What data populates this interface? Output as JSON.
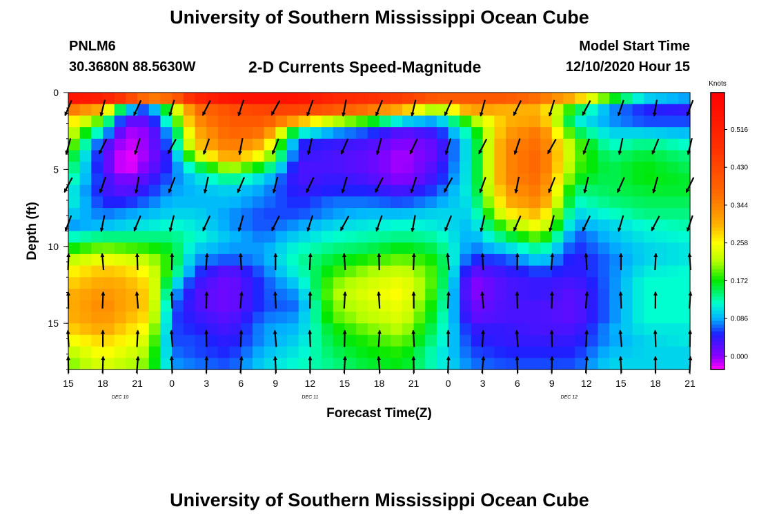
{
  "header": {
    "title": "University of Southern Mississippi Ocean Cube",
    "station": "PNLM6",
    "coords": "30.3680N 88.5630W",
    "subtitle": "2-D Currents Speed-Magnitude",
    "model_start_label": "Model Start Time",
    "model_start_value": "12/10/2020 Hour 15"
  },
  "footer": {
    "title": "University of Southern Mississippi Ocean Cube"
  },
  "chart_data": {
    "type": "heatmap",
    "title": "2-D Currents Speed-Magnitude",
    "xlabel": "Forecast Time(Z)",
    "ylabel": "Depth (ft)",
    "x_hours": [
      0,
      54
    ],
    "x_ticks": [
      {
        "h": 0,
        "label": "15"
      },
      {
        "h": 3,
        "label": "18"
      },
      {
        "h": 6,
        "label": "21"
      },
      {
        "h": 9,
        "label": "0"
      },
      {
        "h": 12,
        "label": "3"
      },
      {
        "h": 15,
        "label": "6"
      },
      {
        "h": 18,
        "label": "9"
      },
      {
        "h": 21,
        "label": "12"
      },
      {
        "h": 24,
        "label": "15"
      },
      {
        "h": 27,
        "label": "18"
      },
      {
        "h": 30,
        "label": "21"
      },
      {
        "h": 33,
        "label": "0"
      },
      {
        "h": 36,
        "label": "3"
      },
      {
        "h": 39,
        "label": "6"
      },
      {
        "h": 42,
        "label": "9"
      },
      {
        "h": 45,
        "label": "12"
      },
      {
        "h": 48,
        "label": "15"
      },
      {
        "h": 51,
        "label": "18"
      },
      {
        "h": 54,
        "label": "21"
      }
    ],
    "day_labels": [
      {
        "h": 4.5,
        "label": "DEC 10"
      },
      {
        "h": 21,
        "label": "DEC 11"
      },
      {
        "h": 43.5,
        "label": "DEC 12"
      }
    ],
    "ylim": [
      0,
      18
    ],
    "y_ticks": [
      0,
      5,
      10,
      15
    ],
    "colorbar": {
      "label": "Knots",
      "ticks": [
        0.0,
        0.086,
        0.172,
        0.258,
        0.344,
        0.43,
        0.516
      ],
      "tick_labels": [
        "0.000",
        "0.086",
        "0.172",
        "0.258",
        "0.344",
        "0.430",
        "0.516"
      ],
      "range": [
        -0.03,
        0.6
      ],
      "stops": [
        {
          "v": -0.03,
          "color": "#ff00ff"
        },
        {
          "v": 0.0,
          "color": "#8a00ff"
        },
        {
          "v": 0.05,
          "color": "#1f1fff"
        },
        {
          "v": 0.086,
          "color": "#00b4ff"
        },
        {
          "v": 0.12,
          "color": "#00ffd0"
        },
        {
          "v": 0.172,
          "color": "#00e800"
        },
        {
          "v": 0.215,
          "color": "#b4ff00"
        },
        {
          "v": 0.258,
          "color": "#ffff00"
        },
        {
          "v": 0.3,
          "color": "#ffb000"
        },
        {
          "v": 0.37,
          "color": "#ff6a00"
        },
        {
          "v": 0.47,
          "color": "#ff3200"
        },
        {
          "v": 0.6,
          "color": "#ff0000"
        }
      ]
    },
    "depth_rows": [
      0.375,
      1.125,
      1.875,
      2.625,
      3.375,
      4.125,
      4.875,
      5.625,
      6.375,
      7.125,
      7.875,
      8.625,
      9.375,
      10.125,
      10.875,
      11.625,
      12.375,
      13.125,
      13.875,
      14.625,
      15.375,
      16.125,
      16.875,
      17.625
    ],
    "speed_profiles": [
      {
        "h": 0,
        "values": [
          0.55,
          0.36,
          0.28,
          0.24,
          0.22,
          0.18,
          0.16,
          0.14,
          0.12,
          0.12,
          0.1,
          0.08,
          0.12,
          0.17,
          0.22,
          0.26,
          0.28,
          0.3,
          0.3,
          0.3,
          0.28,
          0.25,
          0.22,
          0.2
        ]
      },
      {
        "h": 3,
        "values": [
          0.52,
          0.3,
          0.18,
          0.1,
          0.04,
          0.03,
          0.03,
          0.04,
          0.04,
          0.05,
          0.07,
          0.09,
          0.14,
          0.2,
          0.25,
          0.29,
          0.31,
          0.33,
          0.34,
          0.33,
          0.31,
          0.28,
          0.26,
          0.24
        ]
      },
      {
        "h": 5,
        "values": [
          0.45,
          0.1,
          0.02,
          -0.01,
          -0.02,
          -0.03,
          -0.03,
          0.0,
          0.02,
          0.05,
          0.08,
          0.1,
          0.14,
          0.19,
          0.24,
          0.28,
          0.3,
          0.31,
          0.31,
          0.3,
          0.28,
          0.26,
          0.24,
          0.22
        ]
      },
      {
        "h": 7,
        "values": [
          0.35,
          0.05,
          0.02,
          0.0,
          0.0,
          0.0,
          0.01,
          0.03,
          0.05,
          0.07,
          0.09,
          0.11,
          0.14,
          0.18,
          0.22,
          0.25,
          0.27,
          0.28,
          0.28,
          0.27,
          0.25,
          0.23,
          0.21,
          0.2
        ]
      },
      {
        "h": 9,
        "values": [
          0.38,
          0.2,
          0.15,
          0.1,
          0.08,
          0.06,
          0.06,
          0.07,
          0.08,
          0.09,
          0.1,
          0.12,
          0.14,
          0.16,
          0.17,
          0.16,
          0.12,
          0.09,
          0.07,
          0.06,
          0.06,
          0.06,
          0.07,
          0.08
        ]
      },
      {
        "h": 11,
        "values": [
          0.5,
          0.36,
          0.33,
          0.3,
          0.28,
          0.22,
          0.14,
          0.1,
          0.09,
          0.09,
          0.1,
          0.11,
          0.12,
          0.1,
          0.08,
          0.06,
          0.04,
          0.03,
          0.03,
          0.04,
          0.05,
          0.06,
          0.06,
          0.07
        ]
      },
      {
        "h": 14,
        "values": [
          0.55,
          0.42,
          0.4,
          0.38,
          0.36,
          0.32,
          0.22,
          0.14,
          0.1,
          0.09,
          0.08,
          0.08,
          0.09,
          0.08,
          0.06,
          0.02,
          0.01,
          0.01,
          0.01,
          0.02,
          0.03,
          0.04,
          0.05,
          0.06
        ]
      },
      {
        "h": 17,
        "values": [
          0.56,
          0.44,
          0.4,
          0.36,
          0.3,
          0.24,
          0.16,
          0.1,
          0.08,
          0.07,
          0.06,
          0.06,
          0.07,
          0.08,
          0.08,
          0.07,
          0.06,
          0.06,
          0.06,
          0.07,
          0.08,
          0.08,
          0.09,
          0.1
        ]
      },
      {
        "h": 20,
        "values": [
          0.55,
          0.44,
          0.3,
          0.12,
          0.05,
          0.04,
          0.03,
          0.03,
          0.04,
          0.05,
          0.06,
          0.08,
          0.1,
          0.12,
          0.13,
          0.12,
          0.1,
          0.08,
          0.07,
          0.08,
          0.09,
          0.1,
          0.11,
          0.12
        ]
      },
      {
        "h": 23,
        "values": [
          0.5,
          0.4,
          0.22,
          0.08,
          0.04,
          0.03,
          0.03,
          0.04,
          0.05,
          0.07,
          0.08,
          0.1,
          0.12,
          0.14,
          0.16,
          0.18,
          0.2,
          0.21,
          0.2,
          0.19,
          0.17,
          0.16,
          0.15,
          0.14
        ]
      },
      {
        "h": 26,
        "values": [
          0.48,
          0.36,
          0.18,
          0.06,
          0.03,
          0.02,
          0.02,
          0.03,
          0.05,
          0.07,
          0.09,
          0.11,
          0.13,
          0.15,
          0.18,
          0.21,
          0.23,
          0.24,
          0.23,
          0.22,
          0.2,
          0.18,
          0.17,
          0.16
        ]
      },
      {
        "h": 29,
        "values": [
          0.45,
          0.3,
          0.1,
          0.02,
          0.0,
          -0.01,
          -0.01,
          0.0,
          0.03,
          0.06,
          0.09,
          0.12,
          0.14,
          0.17,
          0.2,
          0.23,
          0.25,
          0.26,
          0.25,
          0.24,
          0.22,
          0.2,
          0.18,
          0.17
        ]
      },
      {
        "h": 32,
        "values": [
          0.4,
          0.2,
          0.08,
          0.04,
          0.02,
          0.02,
          0.03,
          0.04,
          0.06,
          0.08,
          0.1,
          0.11,
          0.13,
          0.15,
          0.17,
          0.18,
          0.18,
          0.17,
          0.16,
          0.15,
          0.14,
          0.13,
          0.12,
          0.12
        ]
      },
      {
        "h": 35,
        "values": [
          0.4,
          0.32,
          0.2,
          0.14,
          0.12,
          0.12,
          0.12,
          0.12,
          0.12,
          0.11,
          0.1,
          0.09,
          0.08,
          0.07,
          0.05,
          0.02,
          0.0,
          0.0,
          0.01,
          0.02,
          0.04,
          0.05,
          0.06,
          0.07
        ]
      },
      {
        "h": 38,
        "values": [
          0.4,
          0.3,
          0.3,
          0.32,
          0.34,
          0.34,
          0.34,
          0.34,
          0.32,
          0.3,
          0.26,
          0.2,
          0.15,
          0.1,
          0.06,
          0.04,
          0.03,
          0.03,
          0.03,
          0.03,
          0.04,
          0.04,
          0.05,
          0.06
        ]
      },
      {
        "h": 41,
        "values": [
          0.36,
          0.3,
          0.32,
          0.36,
          0.37,
          0.38,
          0.38,
          0.37,
          0.36,
          0.34,
          0.3,
          0.26,
          0.2,
          0.14,
          0.1,
          0.06,
          0.04,
          0.04,
          0.03,
          0.03,
          0.03,
          0.04,
          0.05,
          0.06
        ]
      },
      {
        "h": 44,
        "values": [
          0.3,
          0.16,
          0.12,
          0.16,
          0.2,
          0.2,
          0.19,
          0.17,
          0.14,
          0.12,
          0.1,
          0.08,
          0.06,
          0.05,
          0.04,
          0.04,
          0.03,
          0.02,
          0.02,
          0.02,
          0.03,
          0.04,
          0.05,
          0.06
        ]
      },
      {
        "h": 47,
        "values": [
          0.18,
          0.08,
          0.08,
          0.1,
          0.12,
          0.14,
          0.15,
          0.15,
          0.15,
          0.14,
          0.12,
          0.1,
          0.09,
          0.08,
          0.07,
          0.07,
          0.07,
          0.07,
          0.07,
          0.07,
          0.08,
          0.08,
          0.09,
          0.1
        ]
      },
      {
        "h": 50,
        "values": [
          0.1,
          0.05,
          0.06,
          0.1,
          0.14,
          0.16,
          0.17,
          0.17,
          0.16,
          0.15,
          0.14,
          0.12,
          0.11,
          0.1,
          0.1,
          0.11,
          0.12,
          0.12,
          0.12,
          0.12,
          0.11,
          0.1,
          0.1,
          0.1
        ]
      },
      {
        "h": 54,
        "values": [
          0.08,
          0.04,
          0.06,
          0.09,
          0.12,
          0.14,
          0.15,
          0.16,
          0.16,
          0.15,
          0.14,
          0.13,
          0.12,
          0.11,
          0.11,
          0.12,
          0.12,
          0.12,
          0.12,
          0.12,
          0.11,
          0.11,
          0.1,
          0.1
        ]
      }
    ],
    "vector_depths": [
      1,
      3.5,
      6,
      8.5,
      11,
      13.5,
      16,
      17.7
    ]
  }
}
